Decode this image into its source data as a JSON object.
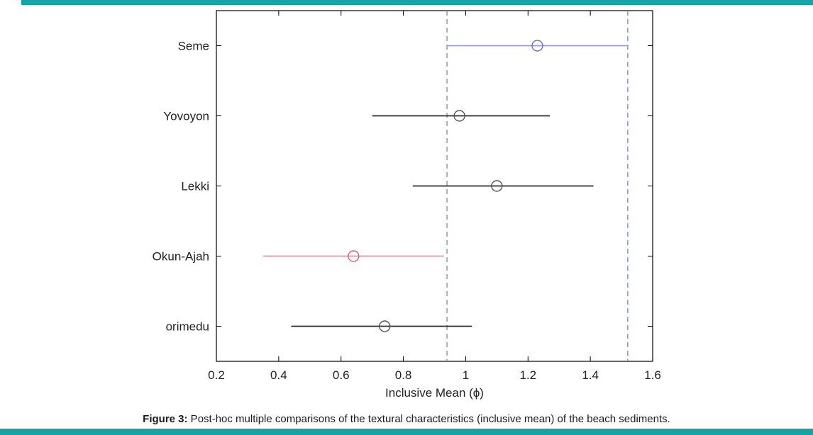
{
  "page": {
    "accent_color": "#16a3a3"
  },
  "caption": {
    "label": "Figure 3:",
    "text": " Post-hoc multiple comparisons of the textural characteristics (inclusive mean) of the beach sediments."
  },
  "chart_data": {
    "type": "interval",
    "title": "",
    "xlabel": "Inclusive Mean (ϕ)",
    "ylabel": "",
    "xlim": [
      0.2,
      1.6
    ],
    "grid": false,
    "xticks": [
      0.2,
      0.4,
      0.6,
      0.8,
      1.0,
      1.2,
      1.4,
      1.6
    ],
    "xtick_labels": [
      "0.2",
      "0.4",
      "0.6",
      "0.8",
      "1",
      "1.2",
      "1.4",
      "1.6"
    ],
    "reference_lines": {
      "x": [
        0.94,
        1.52
      ],
      "color": "#7b90c6",
      "style": "dashed"
    },
    "groups": [
      {
        "name": "Seme",
        "low": 0.94,
        "mean": 1.23,
        "high": 1.52,
        "color": "#9a9ade",
        "marker_color": "#6e6ec4",
        "status": "selected"
      },
      {
        "name": "Yovoyon",
        "low": 0.7,
        "mean": 0.98,
        "high": 1.27,
        "color": "#2b2b2b",
        "marker_color": "#555555",
        "status": "not-different"
      },
      {
        "name": "Lekki",
        "low": 0.83,
        "mean": 1.1,
        "high": 1.41,
        "color": "#2b2b2b",
        "marker_color": "#555555",
        "status": "not-different"
      },
      {
        "name": "Okun-Ajah",
        "low": 0.35,
        "mean": 0.64,
        "high": 0.93,
        "color": "#ec8f9b",
        "marker_color": "#d9607a",
        "status": "different"
      },
      {
        "name": "orimedu",
        "low": 0.44,
        "mean": 0.74,
        "high": 1.02,
        "color": "#2b2b2b",
        "marker_color": "#555555",
        "status": "not-different"
      }
    ]
  }
}
